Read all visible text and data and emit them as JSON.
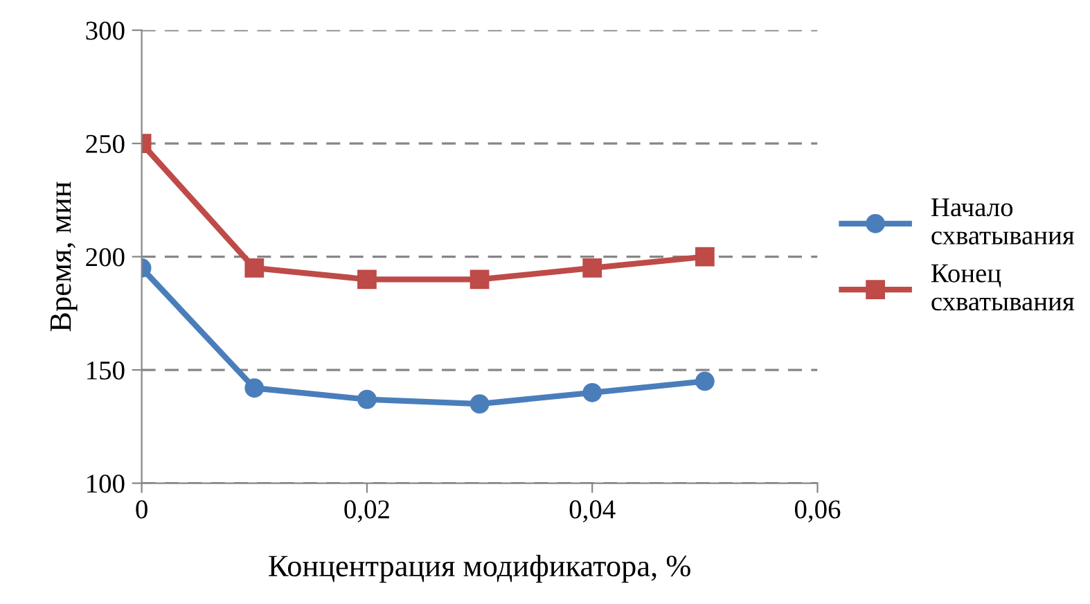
{
  "chart_data": {
    "type": "line",
    "xlabel": "Концентрация модификатора, %",
    "ylabel": "Время, мин",
    "x": [
      0,
      0.01,
      0.02,
      0.03,
      0.04,
      0.05
    ],
    "series": [
      {
        "name": "Начало\nсхватывания",
        "color": "#4a7ebb",
        "marker": "circle",
        "values": [
          195,
          142,
          137,
          135,
          140,
          145
        ]
      },
      {
        "name": "Конец\nсхватывания",
        "color": "#be4b48",
        "marker": "square",
        "values": [
          250,
          195,
          190,
          190,
          195,
          200
        ]
      }
    ],
    "xlim": [
      0,
      0.06
    ],
    "xticks": [
      0,
      {
        "value": 0.02,
        "label": "0,02"
      },
      {
        "value": 0.04,
        "label": "0,04"
      },
      {
        "value": 0.06,
        "label": "0,06"
      }
    ],
    "ylim": [
      100,
      300
    ],
    "yticks": [
      100,
      150,
      200,
      250,
      300
    ],
    "grid": "y",
    "line_style": "solid",
    "legend": "right"
  }
}
